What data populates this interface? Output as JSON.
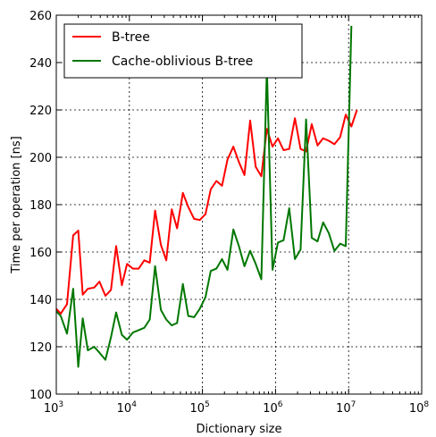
{
  "chart_data": {
    "type": "line",
    "title": "",
    "xlabel": "Dictionary size",
    "ylabel": "Time per operation [ns]",
    "xscale": "log",
    "xlim": [
      1000,
      100000000
    ],
    "ylim": [
      100,
      260
    ],
    "grid": true,
    "legend_position": "top-left",
    "x_tick_labels": [
      {
        "value": 1000,
        "base": "10",
        "exp": "3"
      },
      {
        "value": 10000,
        "base": "10",
        "exp": "4"
      },
      {
        "value": 100000,
        "base": "10",
        "exp": "5"
      },
      {
        "value": 1000000,
        "base": "10",
        "exp": "6"
      },
      {
        "value": 10000000,
        "base": "10",
        "exp": "7"
      },
      {
        "value": 100000000,
        "base": "10",
        "exp": "8"
      }
    ],
    "y_ticks": [
      100,
      120,
      140,
      160,
      180,
      200,
      220,
      240,
      260
    ],
    "series": [
      {
        "name": "B-tree",
        "color": "#ff0000",
        "points": [
          [
            1000,
            136
          ],
          [
            1150,
            134
          ],
          [
            1400,
            138
          ],
          [
            1700,
            167
          ],
          [
            2000,
            169
          ],
          [
            2300,
            142
          ],
          [
            2700,
            144.5
          ],
          [
            3300,
            145
          ],
          [
            3900,
            147.5
          ],
          [
            4700,
            141.5
          ],
          [
            5600,
            144
          ],
          [
            6600,
            162.5
          ],
          [
            7900,
            146
          ],
          [
            9300,
            155
          ],
          [
            11200,
            153
          ],
          [
            13400,
            153
          ],
          [
            16000,
            156.5
          ],
          [
            19000,
            155.5
          ],
          [
            22500,
            177.5
          ],
          [
            27000,
            163
          ],
          [
            32000,
            156.5
          ],
          [
            38000,
            178
          ],
          [
            45000,
            170
          ],
          [
            54000,
            185
          ],
          [
            64000,
            179
          ],
          [
            77000,
            174
          ],
          [
            92000,
            173.5
          ],
          [
            110000,
            176
          ],
          [
            130000,
            186.5
          ],
          [
            155000,
            190
          ],
          [
            185000,
            188
          ],
          [
            220000,
            199
          ],
          [
            265000,
            204.5
          ],
          [
            315000,
            198
          ],
          [
            375000,
            192.5
          ],
          [
            450000,
            215.5
          ],
          [
            535000,
            196
          ],
          [
            640000,
            192
          ],
          [
            760000,
            212
          ],
          [
            910000,
            204.5
          ],
          [
            1080000,
            208
          ],
          [
            1290000,
            203
          ],
          [
            1540000,
            203.5
          ],
          [
            1840000,
            216.5
          ],
          [
            2200000,
            203.5
          ],
          [
            2620000,
            202.5
          ],
          [
            3130000,
            214
          ],
          [
            3750000,
            205
          ],
          [
            4480000,
            208
          ],
          [
            5350000,
            207
          ],
          [
            6400000,
            205.5
          ],
          [
            7650000,
            208.5
          ],
          [
            9150000,
            218
          ],
          [
            10900000,
            213
          ],
          [
            13000000,
            220
          ]
        ]
      },
      {
        "name": "Cache-oblivious B-tree",
        "color": "#007700",
        "points": [
          [
            1000,
            135
          ],
          [
            1150,
            133
          ],
          [
            1400,
            125.5
          ],
          [
            1700,
            144.5
          ],
          [
            2000,
            111.5
          ],
          [
            2300,
            132
          ],
          [
            2700,
            118.5
          ],
          [
            3300,
            120
          ],
          [
            3900,
            117.5
          ],
          [
            4700,
            114.5
          ],
          [
            5600,
            124
          ],
          [
            6600,
            134.5
          ],
          [
            7900,
            125
          ],
          [
            9300,
            123
          ],
          [
            11200,
            126
          ],
          [
            13400,
            127
          ],
          [
            16000,
            128
          ],
          [
            19000,
            131.5
          ],
          [
            22500,
            154
          ],
          [
            27000,
            135.5
          ],
          [
            32000,
            131.5
          ],
          [
            38000,
            129
          ],
          [
            45000,
            130
          ],
          [
            54000,
            146.5
          ],
          [
            64000,
            133
          ],
          [
            77000,
            132.5
          ],
          [
            92000,
            136
          ],
          [
            110000,
            141
          ],
          [
            130000,
            152
          ],
          [
            155000,
            153
          ],
          [
            185000,
            157
          ],
          [
            220000,
            152.5
          ],
          [
            265000,
            169.5
          ],
          [
            315000,
            162.5
          ],
          [
            375000,
            154
          ],
          [
            450000,
            160.5
          ],
          [
            535000,
            155
          ],
          [
            640000,
            148.5
          ],
          [
            760000,
            237.5
          ],
          [
            910000,
            152.5
          ],
          [
            1080000,
            164
          ],
          [
            1290000,
            165
          ],
          [
            1540000,
            178.5
          ],
          [
            1840000,
            157
          ],
          [
            2200000,
            161
          ],
          [
            2620000,
            216
          ],
          [
            3130000,
            166
          ],
          [
            3750000,
            164.5
          ],
          [
            4480000,
            172.5
          ],
          [
            5350000,
            168
          ],
          [
            6400000,
            160.5
          ],
          [
            7650000,
            163.5
          ],
          [
            9150000,
            162.5
          ],
          [
            10900000,
            255.5
          ]
        ]
      }
    ]
  }
}
